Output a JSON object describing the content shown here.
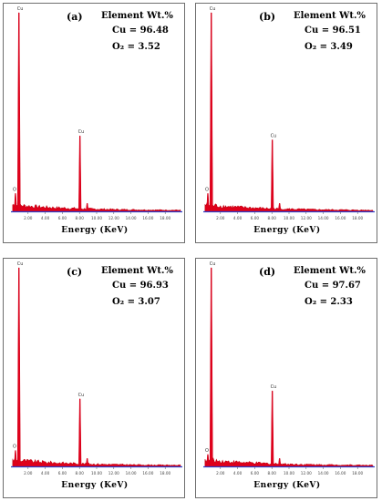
{
  "chart_data": [
    {
      "type": "line",
      "panel_label": "(a)",
      "annotation_title": "Element Wt.%",
      "cu_text": "Cu = 96.48",
      "o2_text": "O₂ = 3.52",
      "xlabel": "Energy (KeV)",
      "xlim": [
        0,
        20
      ],
      "xticks": [
        "2.00",
        "4.00",
        "6.00",
        "8.00",
        "10.00",
        "12.00",
        "14.00",
        "16.00",
        "18.00"
      ],
      "peak_labels": [
        "O",
        "Cu",
        "Cu"
      ],
      "series": [
        {
          "x": [
            0.53,
            0.93,
            8.05,
            8.9
          ],
          "y": [
            0.09,
            1.0,
            0.38,
            0.04
          ]
        }
      ],
      "background_level": 0.03
    },
    {
      "type": "line",
      "panel_label": "(b)",
      "annotation_title": "Element Wt.%",
      "cu_text": "Cu = 96.51",
      "o2_text": "O₂ = 3.49",
      "xlabel": "Energy (KeV)",
      "xlim": [
        0,
        20
      ],
      "xticks": [
        "2.00",
        "4.00",
        "6.00",
        "8.00",
        "10.00",
        "12.00",
        "14.00",
        "16.00",
        "18.00"
      ],
      "peak_labels": [
        "O",
        "Cu",
        "Cu"
      ],
      "series": [
        {
          "x": [
            0.53,
            0.93,
            8.05,
            8.9
          ],
          "y": [
            0.09,
            1.0,
            0.36,
            0.04
          ]
        }
      ],
      "background_level": 0.03
    },
    {
      "type": "line",
      "panel_label": "(c)",
      "annotation_title": "Element Wt.%",
      "cu_text": "Cu = 96.93",
      "o2_text": "O₂ = 3.07",
      "xlabel": "Energy (KeV)",
      "xlim": [
        0,
        20
      ],
      "xticks": [
        "2.00",
        "4.00",
        "6.00",
        "8.00",
        "10.00",
        "12.00",
        "14.00",
        "16.00",
        "18.00"
      ],
      "peak_labels": [
        "O",
        "Cu",
        "Cu"
      ],
      "series": [
        {
          "x": [
            0.53,
            0.93,
            8.05,
            8.9
          ],
          "y": [
            0.08,
            1.0,
            0.34,
            0.04
          ]
        }
      ],
      "background_level": 0.03
    },
    {
      "type": "line",
      "panel_label": "(d)",
      "annotation_title": "Element Wt.%",
      "cu_text": "Cu = 97.67",
      "o2_text": "O₂ = 2.33",
      "xlabel": "Energy (KeV)",
      "xlim": [
        0,
        20
      ],
      "xticks": [
        "2.00",
        "4.00",
        "6.00",
        "8.00",
        "10.00",
        "12.00",
        "14.00",
        "16.00",
        "18.00"
      ],
      "peak_labels": [
        "O",
        "Cu",
        "Cu"
      ],
      "series": [
        {
          "x": [
            0.53,
            0.93,
            8.05,
            8.9
          ],
          "y": [
            0.06,
            1.0,
            0.38,
            0.04
          ]
        }
      ],
      "background_level": 0.03
    }
  ]
}
